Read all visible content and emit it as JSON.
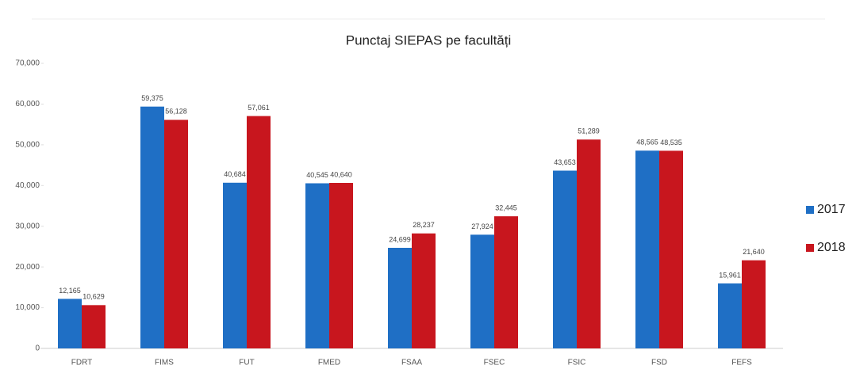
{
  "chart_data": {
    "type": "bar",
    "title": "Punctaj SIEPAS pe facultăți",
    "categories": [
      "FDRT",
      "FIMS",
      "FUT",
      "FMED",
      "FSAA",
      "FSEC",
      "FSIC",
      "FSD",
      "FEFS"
    ],
    "series": [
      {
        "name": "2017",
        "color": "#1f6fc5",
        "values": [
          12165,
          59375,
          40684,
          40545,
          24699,
          27924,
          43653,
          48565,
          15961
        ],
        "value_labels": [
          "12,165",
          "59,375",
          "40,684",
          "40,545",
          "24,699",
          "27,924",
          "43,653",
          "48,565",
          "15,961"
        ]
      },
      {
        "name": "2018",
        "color": "#c8161e",
        "values": [
          10629,
          56128,
          57061,
          40640,
          28237,
          32445,
          51289,
          48535,
          21640
        ],
        "value_labels": [
          "10,629",
          "56,128",
          "57,061",
          "40,640",
          "28,237",
          "32,445",
          "51,289",
          "48,535",
          "21,640"
        ]
      }
    ],
    "ylim": [
      0,
      70000
    ],
    "yticks": [
      0,
      {
        "value": 10000,
        "label": "10,000"
      },
      {
        "value": 20000,
        "label": "20,000"
      },
      {
        "value": 30000,
        "label": "30,000"
      },
      {
        "value": 40000,
        "label": "40,000"
      },
      {
        "value": 50000,
        "label": "50,000"
      },
      {
        "value": 60000,
        "label": "60,000"
      },
      {
        "value": 70000,
        "label": "70,000"
      }
    ],
    "grid": false,
    "legend": "right"
  }
}
